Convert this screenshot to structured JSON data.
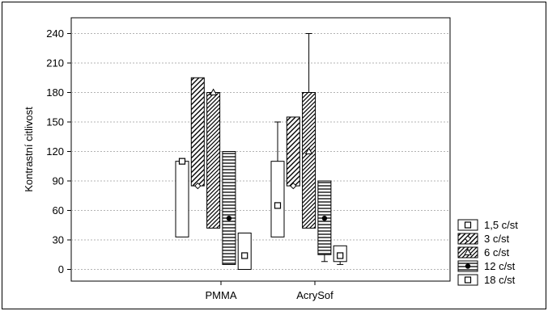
{
  "chart_data": {
    "type": "box",
    "ylabel": "Kontrastní citlivost",
    "ylim": [
      -10,
      255
    ],
    "yticks": [
      0,
      30,
      60,
      90,
      120,
      150,
      180,
      210,
      240
    ],
    "grid": true,
    "legend_position": "right",
    "categories": [
      "PMMA",
      "AcrySof"
    ],
    "series": [
      {
        "name": "1,5 c/st",
        "pattern": "empty",
        "marker": "square",
        "stats": [
          {
            "low": 33,
            "high": 110,
            "median": 110,
            "min": 33,
            "max": 110
          },
          {
            "low": 33,
            "high": 110,
            "median": 65,
            "min": 33,
            "max": 150
          }
        ]
      },
      {
        "name": "3 c/st",
        "pattern": "diagonal",
        "marker": "diamond",
        "stats": [
          {
            "low": 85,
            "high": 195,
            "median": 85,
            "min": 85,
            "max": 195
          },
          {
            "low": 85,
            "high": 155,
            "median": 85,
            "min": 85,
            "max": 155
          }
        ]
      },
      {
        "name": "6 c/st",
        "pattern": "diagonal-dense",
        "marker": "triangle",
        "stats": [
          {
            "low": 42,
            "high": 180,
            "median": 180,
            "min": 42,
            "max": 180
          },
          {
            "low": 42,
            "high": 180,
            "median": 120,
            "min": 42,
            "max": 240
          }
        ]
      },
      {
        "name": "12 c/st",
        "pattern": "horizontal",
        "marker": "dot",
        "stats": [
          {
            "low": 5,
            "high": 120,
            "median": 52,
            "min": 5,
            "max": 120
          },
          {
            "low": 15,
            "high": 90,
            "median": 52,
            "min": 8,
            "max": 90
          }
        ]
      },
      {
        "name": "18 c/st",
        "pattern": "empty",
        "marker": "square",
        "stats": [
          {
            "low": 0,
            "high": 37,
            "median": 14,
            "min": 0,
            "max": 37
          },
          {
            "low": 8,
            "high": 24,
            "median": 14,
            "min": 5,
            "max": 24
          }
        ]
      }
    ]
  }
}
